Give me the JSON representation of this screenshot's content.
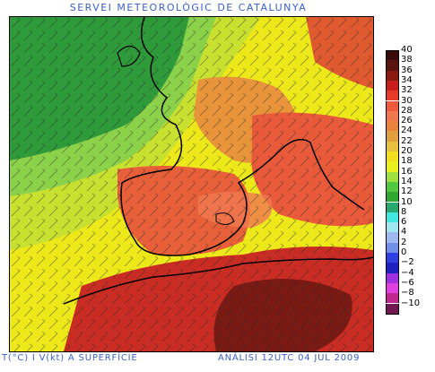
{
  "title": "SERVEI METEOROLÒGIC DE CATALUNYA",
  "footer": {
    "left": "T(°C) I V(kt) A SUPERFÍCIE",
    "right": "ANÀLISI 12UTC 04 JUL 2009"
  },
  "legend": {
    "items": [
      {
        "label": "40",
        "color": "#3a0b0b"
      },
      {
        "label": "38",
        "color": "#5a1410"
      },
      {
        "label": "36",
        "color": "#8a1a12"
      },
      {
        "label": "34",
        "color": "#c81e1e"
      },
      {
        "label": "32",
        "color": "#e83a28"
      },
      {
        "label": "30",
        "color": "#f05a3c"
      },
      {
        "label": "28",
        "color": "#f07850"
      },
      {
        "label": "26",
        "color": "#e8823c"
      },
      {
        "label": "24",
        "color": "#e0a040"
      },
      {
        "label": "22",
        "color": "#e8c040"
      },
      {
        "label": "20",
        "color": "#f0e020"
      },
      {
        "label": "18",
        "color": "#e8f020"
      },
      {
        "label": "16",
        "color": "#a0e040"
      },
      {
        "label": "14",
        "color": "#50c840"
      },
      {
        "label": "12",
        "color": "#30a830"
      },
      {
        "label": "10",
        "color": "#28a870"
      },
      {
        "label": "8",
        "color": "#40e8e0"
      },
      {
        "label": "6",
        "color": "#a0e8f0"
      },
      {
        "label": "4",
        "color": "#a0b8f0"
      },
      {
        "label": "2",
        "color": "#7090e8"
      },
      {
        "label": "0",
        "color": "#3040e0"
      },
      {
        "label": "−2",
        "color": "#2020c0"
      },
      {
        "label": "−4",
        "color": "#a030e0"
      },
      {
        "label": "−6",
        "color": "#e040e0"
      },
      {
        "label": "−8",
        "color": "#c02890"
      },
      {
        "label": "−10",
        "color": "#701850"
      }
    ]
  },
  "colors": {
    "title_blue": "#3a5fcf"
  }
}
